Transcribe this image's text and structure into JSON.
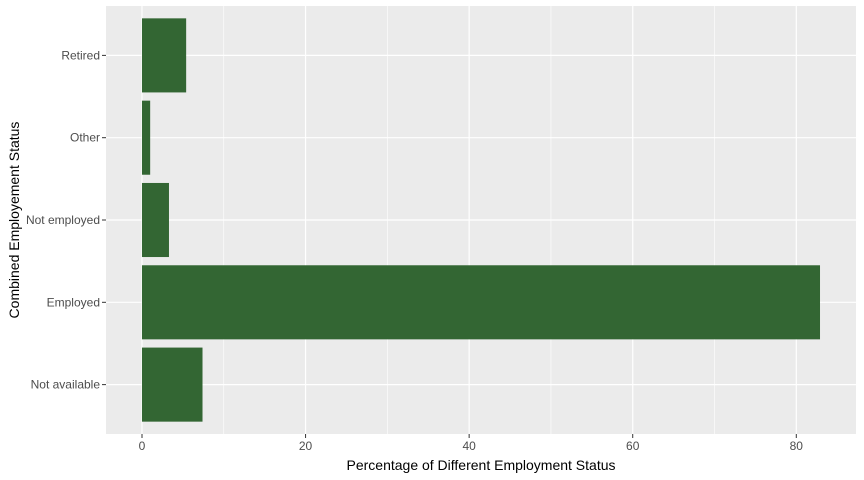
{
  "chart_data": {
    "type": "bar",
    "orientation": "horizontal",
    "categories": [
      "Not available",
      "Employed",
      "Not employed",
      "Other",
      "Retired"
    ],
    "values": [
      7.4,
      82.9,
      3.3,
      1.0,
      5.4
    ],
    "xlabel": "Percentage of Different Employment Status",
    "ylabel": "Combined Employement Status",
    "xlim": [
      -4.4,
      87.3
    ],
    "xticks": [
      0,
      20,
      40,
      60,
      80
    ],
    "grid": true,
    "panel_color": "#EBEBEB",
    "bar_color": "#336633"
  }
}
